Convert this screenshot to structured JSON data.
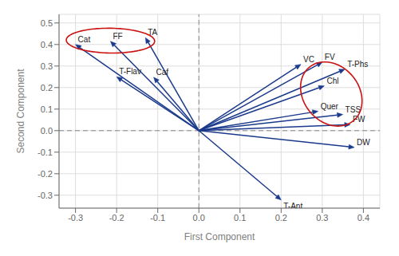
{
  "chart_data": {
    "type": "vector",
    "x_label": "First Component",
    "y_label": "Second Component",
    "labels": [
      "Cat",
      "FF",
      "TA",
      "T-Flav",
      "Caf",
      "VC",
      "FV",
      "T-Phs",
      "Chl",
      "Quer",
      "TSS",
      "FW",
      "DW",
      "T-Ant"
    ],
    "x": [
      -0.3,
      -0.215,
      -0.13,
      -0.2,
      -0.11,
      0.248,
      0.3,
      0.355,
      0.305,
      0.29,
      0.35,
      0.368,
      0.378,
      0.2
    ],
    "values": [
      0.4,
      0.415,
      0.432,
      0.25,
      0.248,
      0.308,
      0.318,
      0.285,
      0.208,
      0.09,
      0.075,
      0.028,
      -0.078,
      -0.322
    ],
    "color": "#1B3A8C",
    "ellipses": [
      {
        "center_x": -0.215,
        "center_y": 0.418,
        "width": 0.215,
        "height": 0.115,
        "angle": -2,
        "color": "#CC1111"
      },
      {
        "center_x": 0.322,
        "center_y": 0.17,
        "width": 0.145,
        "height": 0.3,
        "angle": 8,
        "color": "#CC1111"
      }
    ],
    "xlim": [
      -0.34,
      0.44
    ],
    "ylim": [
      -0.36,
      0.54
    ],
    "xticks": [
      -0.3,
      -0.2,
      -0.1,
      {
        "value": 0,
        "label": "0.0"
      },
      0.1,
      0.2,
      0.3,
      0.4
    ],
    "yticks": [
      -0.3,
      -0.2,
      -0.1,
      {
        "value": 0,
        "label": "0.0"
      },
      0.1,
      0.2,
      0.3,
      0.4,
      0.5
    ],
    "grid": true
  }
}
